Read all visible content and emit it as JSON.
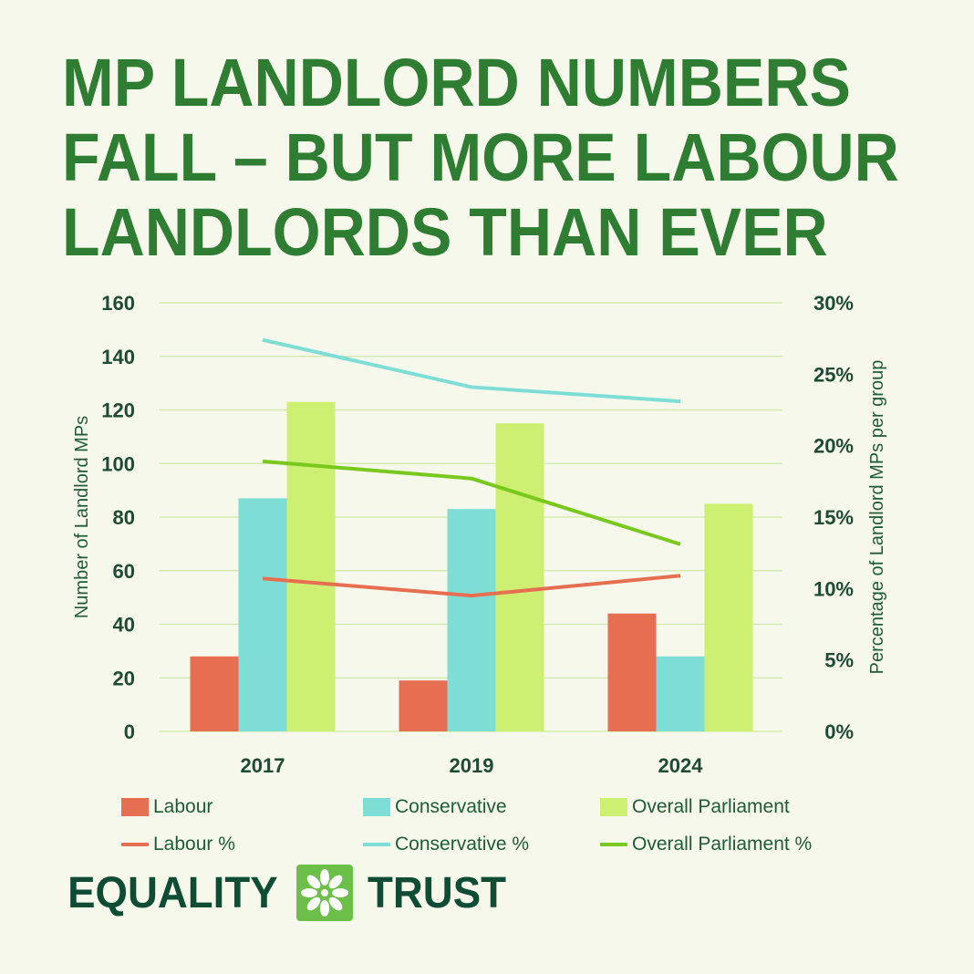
{
  "title_lines": [
    "MP LANDLORD NUMBERS",
    "FALL – BUT MORE LABOUR",
    "LANDLORDS THAN EVER"
  ],
  "brand": {
    "left": "EQUALITY",
    "right": "TRUST",
    "logo_color": "#6cc04a"
  },
  "chart_data": {
    "type": "bar",
    "categories": [
      "2017",
      "2019",
      "2024"
    ],
    "ylabel": "Number of Landlord MPs",
    "y2label": "Percentage of Landlord MPs per group",
    "ylim": [
      0,
      160
    ],
    "y2lim": [
      0,
      30
    ],
    "yticks": [
      "0",
      "20",
      "40",
      "60",
      "80",
      "100",
      "120",
      "140",
      "160"
    ],
    "y2ticks": [
      "0%",
      "5%",
      "10%",
      "15%",
      "20%",
      "25%",
      "30%"
    ],
    "grid": true,
    "series": [
      {
        "name": "Labour",
        "kind": "bar",
        "axis": "left",
        "color": "#e76f51",
        "values": [
          28,
          19,
          44
        ]
      },
      {
        "name": "Conservative",
        "kind": "bar",
        "axis": "left",
        "color": "#7eded6",
        "values": [
          87,
          83,
          28
        ]
      },
      {
        "name": "Overall Parliament",
        "kind": "bar",
        "axis": "left",
        "color": "#cdef72",
        "values": [
          123,
          115,
          85
        ]
      },
      {
        "name": "Labour %",
        "kind": "line",
        "axis": "right",
        "color": "#e76f51",
        "values": [
          10.7,
          9.5,
          10.9
        ]
      },
      {
        "name": "Conservative %",
        "kind": "line",
        "axis": "right",
        "color": "#7eded6",
        "values": [
          27.4,
          24.1,
          23.1
        ]
      },
      {
        "name": "Overall Parliament %",
        "kind": "line",
        "axis": "right",
        "color": "#78c81e",
        "values": [
          18.9,
          17.7,
          13.1
        ]
      }
    ]
  }
}
